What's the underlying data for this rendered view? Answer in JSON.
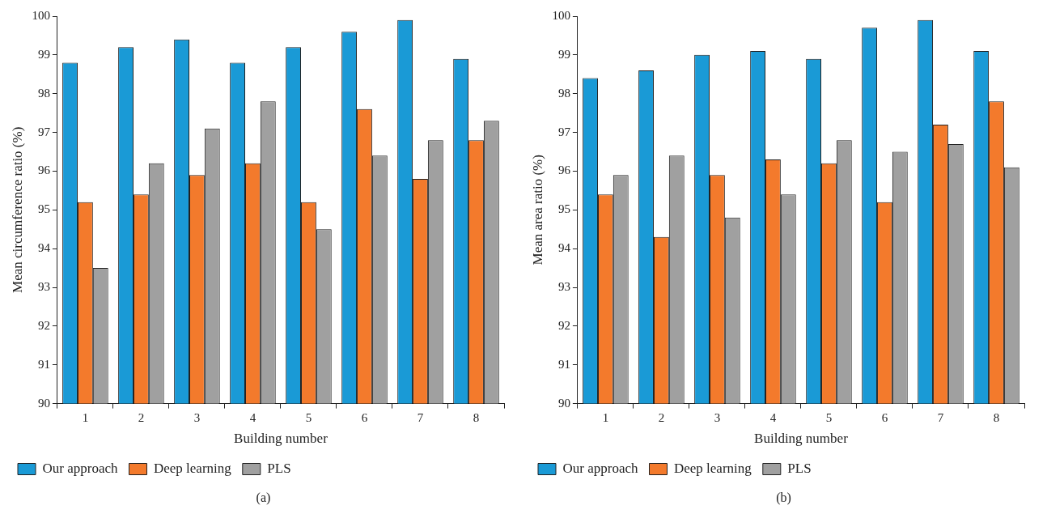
{
  "chart_data": [
    {
      "type": "bar",
      "categories": [
        "1",
        "2",
        "3",
        "4",
        "5",
        "6",
        "7",
        "8"
      ],
      "xlabel": "Building number",
      "ylabel": "Mean circumference ratio (%)",
      "ylim": [
        90,
        100
      ],
      "yticks": [
        90,
        91,
        92,
        93,
        94,
        95,
        96,
        97,
        98,
        99,
        100
      ],
      "grid": false,
      "legend": "bottom",
      "annotations": [
        "(a)"
      ],
      "series": [
        {
          "name": "Our approach",
          "color": "#1a9ad6",
          "values": [
            98.8,
            99.2,
            99.4,
            98.8,
            99.2,
            99.6,
            99.9,
            98.9
          ]
        },
        {
          "name": "Deep learning",
          "color": "#f37a2c",
          "values": [
            95.2,
            95.4,
            95.9,
            96.2,
            95.2,
            97.6,
            95.8,
            96.8
          ]
        },
        {
          "name": "PLS",
          "color": "#a0a0a0",
          "values": [
            93.5,
            96.2,
            97.1,
            97.8,
            94.5,
            96.4,
            96.8,
            97.3
          ]
        }
      ]
    },
    {
      "type": "bar",
      "categories": [
        "1",
        "2",
        "3",
        "4",
        "5",
        "6",
        "7",
        "8"
      ],
      "xlabel": "Building number",
      "ylabel": "Mean area ratio (%)",
      "ylim": [
        90,
        100
      ],
      "yticks": [
        90,
        91,
        92,
        93,
        94,
        95,
        96,
        97,
        98,
        99,
        100
      ],
      "grid": false,
      "legend": "bottom",
      "annotations": [
        "(b)"
      ],
      "series": [
        {
          "name": "Our approach",
          "color": "#1a9ad6",
          "values": [
            98.4,
            98.6,
            99.0,
            99.1,
            98.9,
            99.7,
            99.9,
            99.1
          ]
        },
        {
          "name": "Deep learning",
          "color": "#f37a2c",
          "values": [
            95.4,
            94.3,
            95.9,
            96.3,
            96.2,
            95.2,
            97.2,
            97.8
          ]
        },
        {
          "name": "PLS",
          "color": "#a0a0a0",
          "values": [
            95.9,
            96.4,
            94.8,
            95.4,
            96.8,
            96.5,
            96.7,
            96.1
          ]
        }
      ]
    }
  ]
}
